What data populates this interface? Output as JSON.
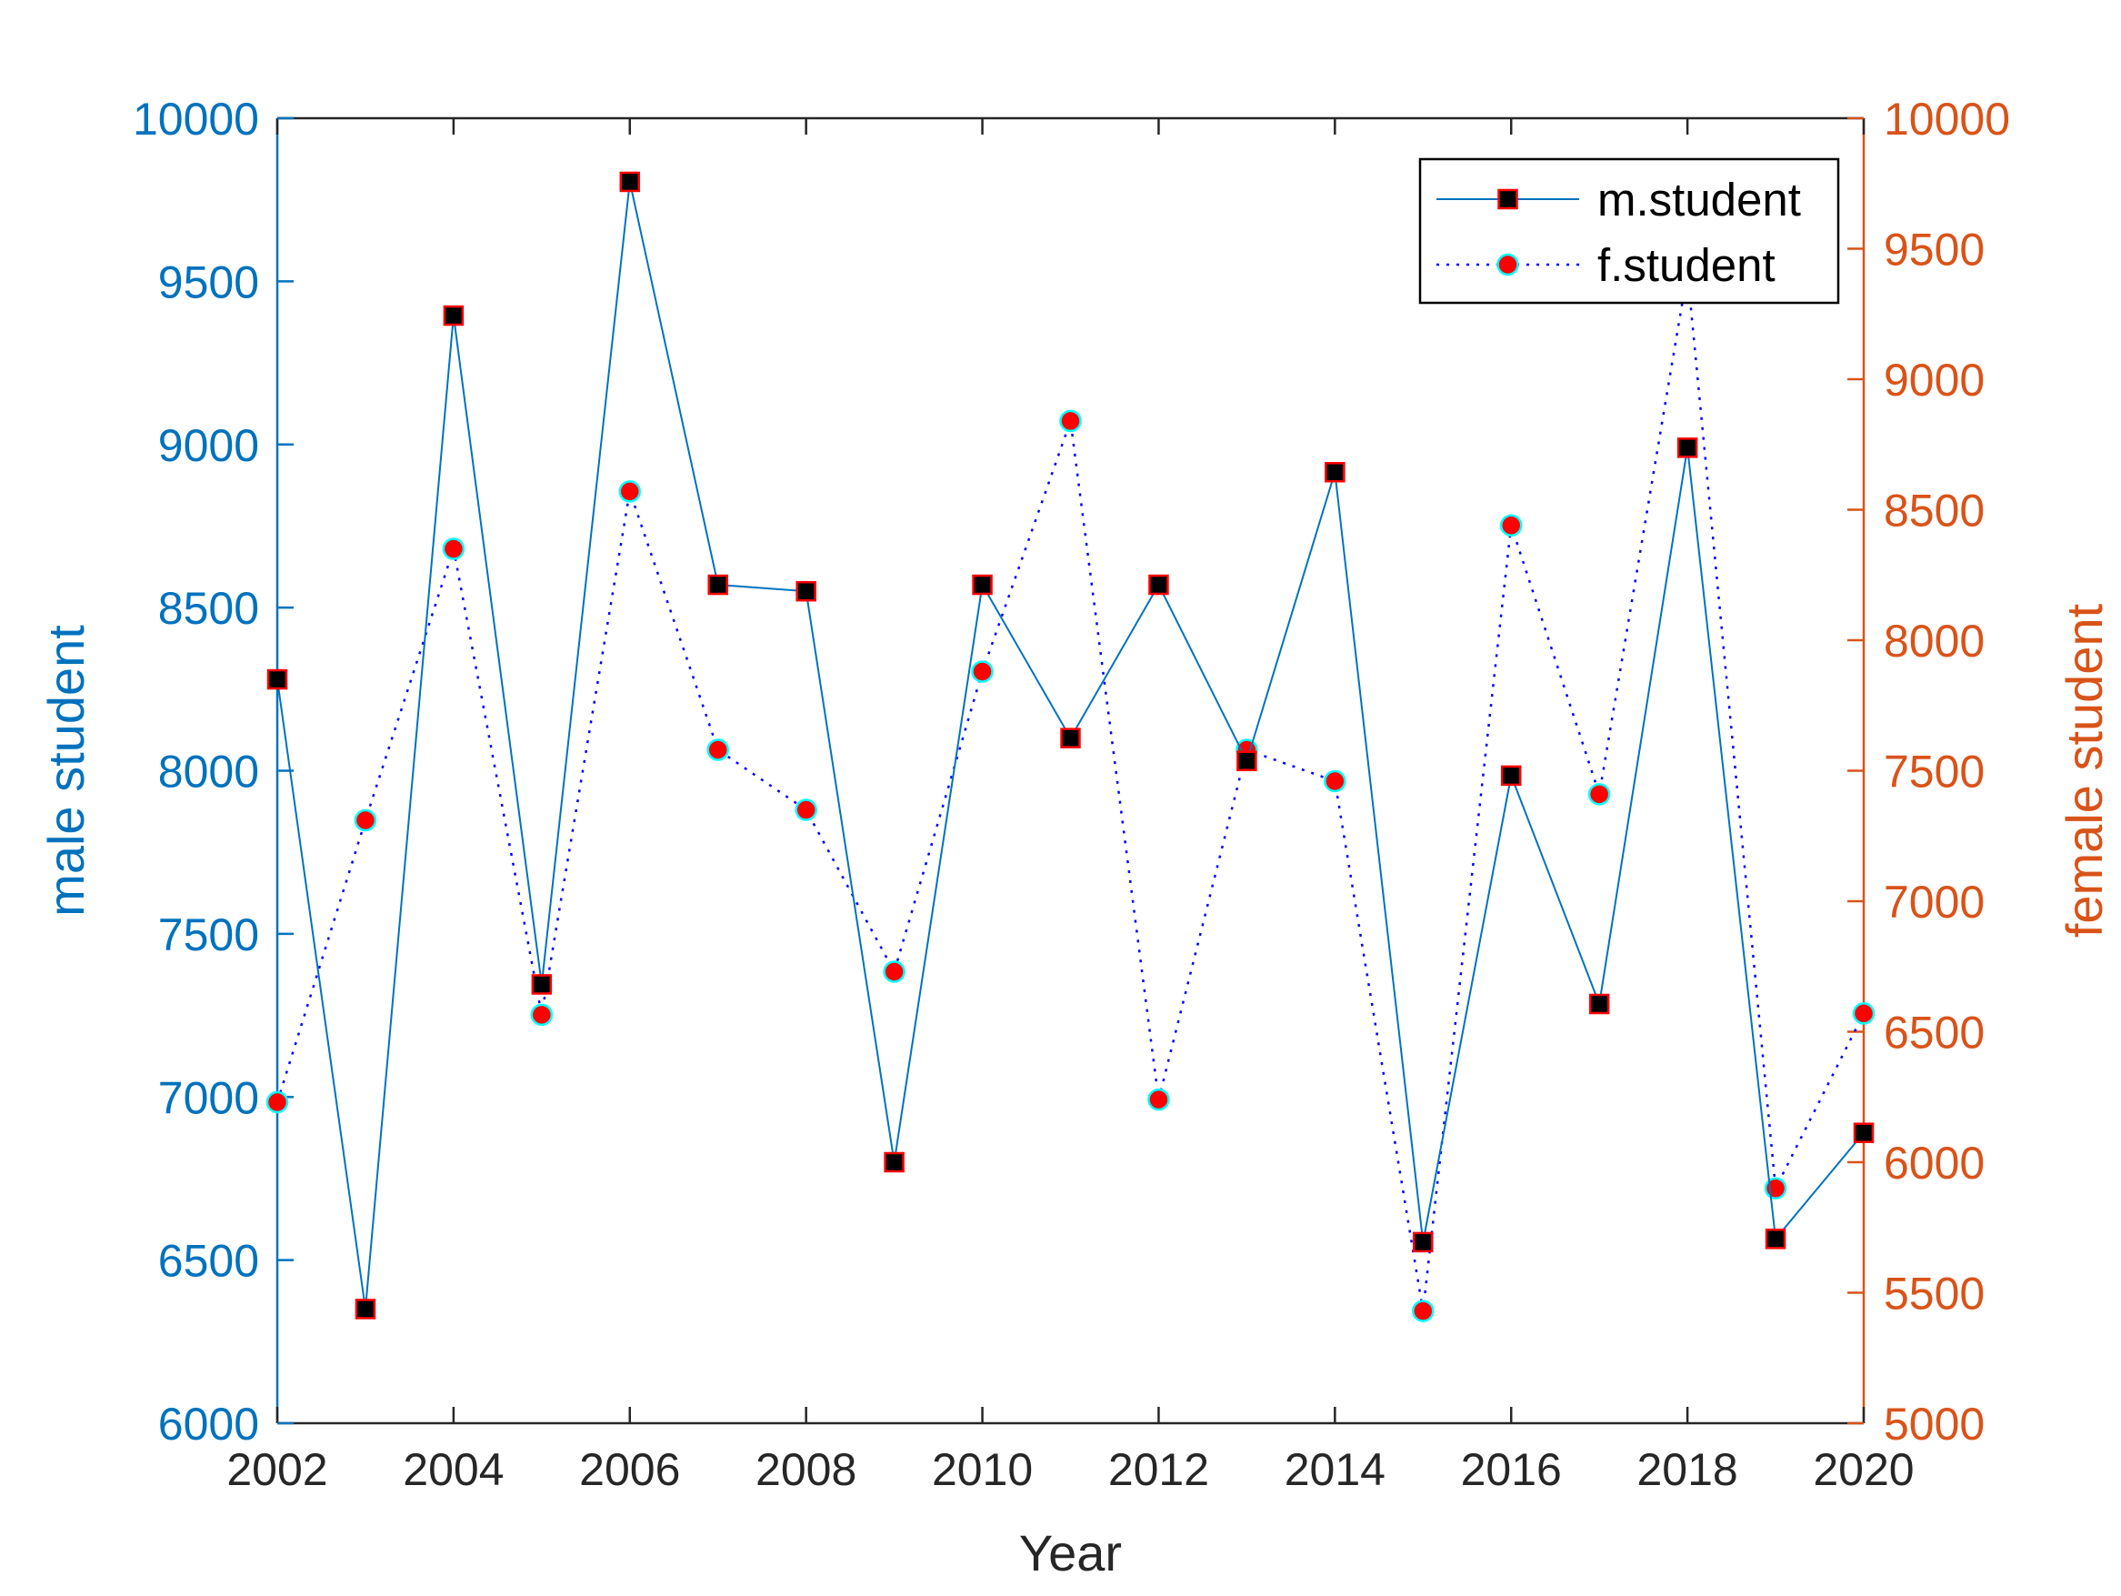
{
  "chart_data": {
    "type": "line",
    "xlabel": "Year",
    "ylabel_left": "male student",
    "ylabel_right": "female student",
    "xlim": [
      2002,
      2020
    ],
    "xticks": [
      2002,
      2004,
      2006,
      2008,
      2010,
      2012,
      2014,
      2016,
      2018,
      2020
    ],
    "ylim_left": [
      6000,
      10000
    ],
    "yticks_left": [
      6000,
      6500,
      7000,
      7500,
      8000,
      8500,
      9000,
      9500,
      10000
    ],
    "ylim_right": [
      5000,
      10000
    ],
    "yticks_right": [
      5000,
      5500,
      6000,
      6500,
      7000,
      7500,
      8000,
      8500,
      9000,
      9500,
      10000
    ],
    "grid": false,
    "legend_position": "top-right",
    "x": [
      2002,
      2003,
      2004,
      2005,
      2006,
      2007,
      2008,
      2009,
      2010,
      2011,
      2012,
      2013,
      2014,
      2015,
      2016,
      2017,
      2018,
      2019,
      2020
    ],
    "series": [
      {
        "name": "m.student",
        "axis": "left",
        "line_style": "solid",
        "line_color": "#0072BD",
        "marker": "square",
        "marker_face": "#000000",
        "marker_edge": "#FF0000",
        "values": [
          8280,
          6350,
          9395,
          7345,
          9805,
          8570,
          8550,
          6800,
          8570,
          8100,
          8570,
          8030,
          8915,
          6555,
          7985,
          7285,
          8990,
          6565,
          6890
        ]
      },
      {
        "name": "f.student",
        "axis": "right",
        "line_style": "dotted",
        "line_color": "#0000FF",
        "marker": "circle",
        "marker_face": "#FF0000",
        "marker_edge": "#00FFFF",
        "values": [
          6230,
          7310,
          8350,
          6565,
          8570,
          7580,
          7350,
          6730,
          7880,
          8840,
          6240,
          7580,
          7460,
          5430,
          8440,
          7410,
          9410,
          5900,
          6570
        ]
      }
    ],
    "colors": {
      "left_axis": "#0072BD",
      "right_axis": "#D95319",
      "x_axis": "#262626"
    }
  }
}
